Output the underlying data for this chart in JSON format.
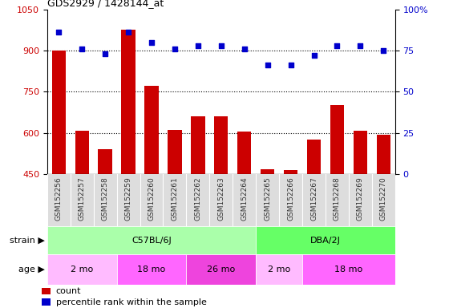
{
  "title": "GDS2929 / 1428144_at",
  "samples": [
    "GSM152256",
    "GSM152257",
    "GSM152258",
    "GSM152259",
    "GSM152260",
    "GSM152261",
    "GSM152262",
    "GSM152263",
    "GSM152264",
    "GSM152265",
    "GSM152266",
    "GSM152267",
    "GSM152268",
    "GSM152269",
    "GSM152270"
  ],
  "counts": [
    900,
    607,
    540,
    975,
    770,
    610,
    660,
    660,
    605,
    468,
    465,
    575,
    700,
    607,
    592
  ],
  "percentiles": [
    86,
    76,
    73,
    86,
    80,
    76,
    78,
    78,
    76,
    66,
    66,
    72,
    78,
    78,
    75
  ],
  "ylim_left": [
    450,
    1050
  ],
  "ylim_right": [
    0,
    100
  ],
  "yticks_left": [
    450,
    600,
    750,
    900,
    1050
  ],
  "yticks_right": [
    0,
    25,
    50,
    75,
    100
  ],
  "bar_color": "#cc0000",
  "dot_color": "#0000cc",
  "grid_color": "#000000",
  "strain_groups": [
    {
      "label": "C57BL/6J",
      "start": 0,
      "end": 9,
      "color": "#aaffaa"
    },
    {
      "label": "DBA/2J",
      "start": 9,
      "end": 15,
      "color": "#66ff66"
    }
  ],
  "age_groups": [
    {
      "label": "2 mo",
      "start": 0,
      "end": 3,
      "color": "#ffbbff"
    },
    {
      "label": "18 mo",
      "start": 3,
      "end": 6,
      "color": "#ff66ff"
    },
    {
      "label": "26 mo",
      "start": 6,
      "end": 9,
      "color": "#ee44dd"
    },
    {
      "label": "2 mo",
      "start": 9,
      "end": 11,
      "color": "#ffbbff"
    },
    {
      "label": "18 mo",
      "start": 11,
      "end": 15,
      "color": "#ff66ff"
    }
  ],
  "tick_label_color_left": "#cc0000",
  "tick_label_color_right": "#0000cc",
  "plot_bg_color": "#ffffff",
  "sample_area_color": "#dddddd"
}
